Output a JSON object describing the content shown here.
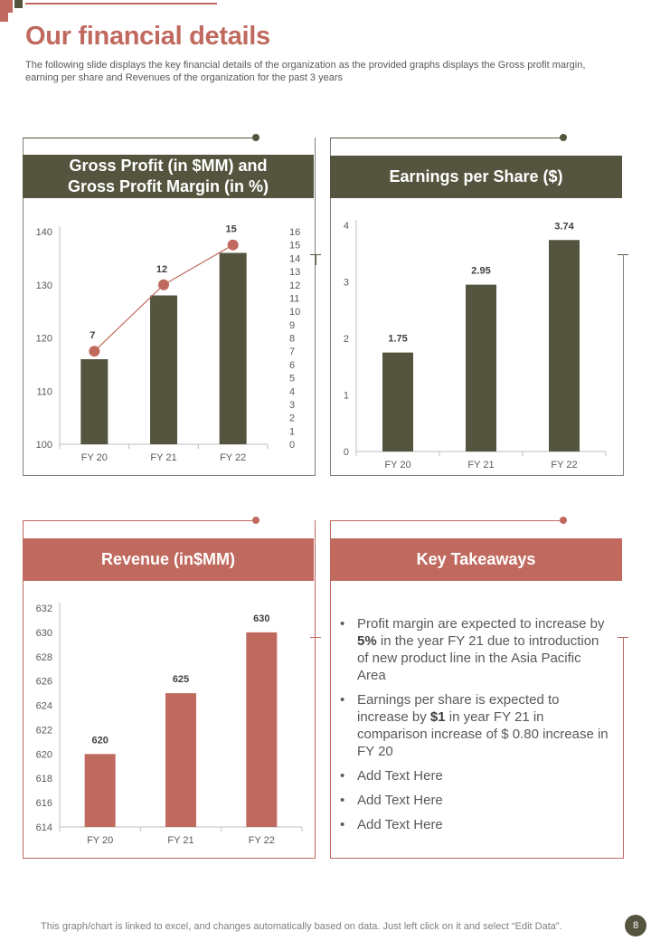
{
  "page": {
    "title": "Our financial details",
    "subtitle": "The following slide displays the key financial details of the organization as the provided graphs displays the Gross profit margin, earning per share and Revenues of the organization for the past 3 years",
    "footer": "This graph/chart is linked to excel,  and changes automatically based on data. Just left click on it and select “Edit Data”.",
    "page_number": "8"
  },
  "colors": {
    "olive": "#55553f",
    "rose": "#c0695e",
    "frame": "#7f7f7f",
    "axis": "#bfbfbf"
  },
  "panels": {
    "gross_profit": {
      "title_line1": "Gross Profit (in $MM) and",
      "title_line2": "Gross Profit Margin (in %)"
    },
    "eps": {
      "title": "Earnings per Share ($)"
    },
    "revenue": {
      "title": "Revenue (in$MM)"
    },
    "takeaways": {
      "title": "Key Takeaways",
      "items": [
        {
          "pre": "Profit margin are expected to increase by ",
          "bold": "5%",
          "post": " in the year FY 21 due to introduction  of new product line in the Asia Pacific Area"
        },
        {
          "pre": "Earnings per share is expected to increase by ",
          "bold": "$1",
          "post": " in year FY 21 in comparison  increase of $ 0.80 increase in FY 20"
        },
        {
          "pre": "Add Text Here",
          "bold": "",
          "post": ""
        },
        {
          "pre": "Add Text Here",
          "bold": "",
          "post": ""
        },
        {
          "pre": "Add Text Here",
          "bold": "",
          "post": ""
        }
      ]
    }
  },
  "chart_data": [
    {
      "id": "gross_profit",
      "type": "bar",
      "title": "Gross Profit (in $MM) and Gross Profit Margin (in %)",
      "categories": [
        "FY 20",
        "FY 21",
        "FY 22"
      ],
      "series": [
        {
          "name": "Gross Profit",
          "type": "bar",
          "axis": "left",
          "values": [
            116,
            128,
            136
          ]
        },
        {
          "name": "Gross Profit Margin",
          "type": "line",
          "axis": "right",
          "values": [
            7,
            12,
            15
          ],
          "labels": [
            "7",
            "12",
            "15"
          ]
        }
      ],
      "ylim": [
        100,
        140
      ],
      "yticks": [
        100,
        110,
        120,
        130,
        140
      ],
      "y2lim": [
        0,
        16
      ],
      "y2ticks": [
        0,
        1,
        2,
        3,
        4,
        5,
        6,
        7,
        8,
        9,
        10,
        11,
        12,
        13,
        14,
        15,
        16
      ]
    },
    {
      "id": "eps",
      "type": "bar",
      "title": "Earnings per Share ($)",
      "categories": [
        "FY 20",
        "FY 21",
        "FY 22"
      ],
      "values": [
        1.75,
        2.95,
        3.74
      ],
      "labels": [
        "1.75",
        "2.95",
        "3.74"
      ],
      "ylim": [
        0,
        4
      ],
      "yticks": [
        0,
        1,
        2,
        3,
        4
      ]
    },
    {
      "id": "revenue",
      "type": "bar",
      "title": "Revenue (in$MM)",
      "categories": [
        "FY 20",
        "FY 21",
        "FY 22"
      ],
      "values": [
        620,
        625,
        630
      ],
      "labels": [
        "620",
        "625",
        "630"
      ],
      "ylim": [
        614,
        632
      ],
      "yticks": [
        614,
        616,
        618,
        620,
        622,
        624,
        626,
        628,
        630,
        632
      ]
    }
  ]
}
